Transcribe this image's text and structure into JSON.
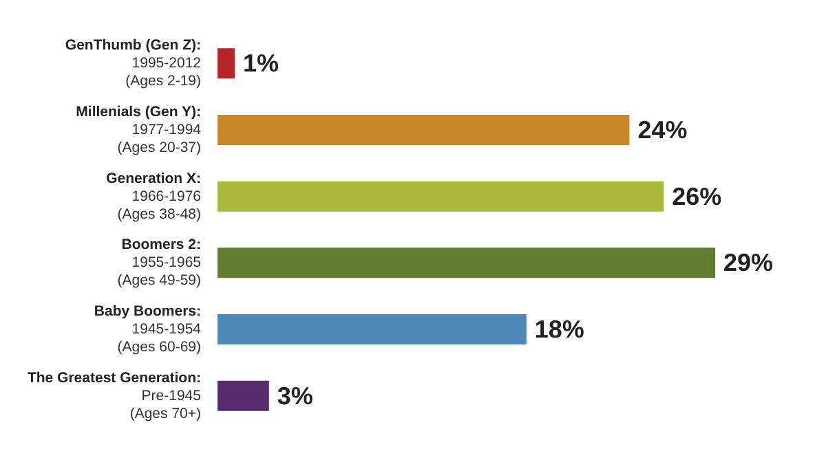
{
  "chart_data": {
    "type": "bar",
    "orientation": "horizontal",
    "categories": [
      "GenThumb (Gen Z):\n1995-2012\n(Ages 2-19)",
      "Millenials (Gen Y):\n1977-1994\n(Ages 20-37)",
      "Generation X:\n1966-1976\n(Ages 38-48)",
      "Boomers 2:\n1955-1965\n(Ages 49-59)",
      "Baby Boomers:\n1945-1954\n(Ages 60-69)",
      "The Greatest Generation:\nPre-1945\n(Ages 70+)"
    ],
    "values": [
      1,
      24,
      26,
      29,
      18,
      3
    ],
    "value_labels": [
      "1%",
      "24%",
      "26%",
      "29%",
      "18%",
      "3%"
    ],
    "colors": [
      "#b5262b",
      "#c8862b",
      "#a8b83a",
      "#5f7f2f",
      "#4f87b8",
      "#5a2a6e"
    ]
  }
}
